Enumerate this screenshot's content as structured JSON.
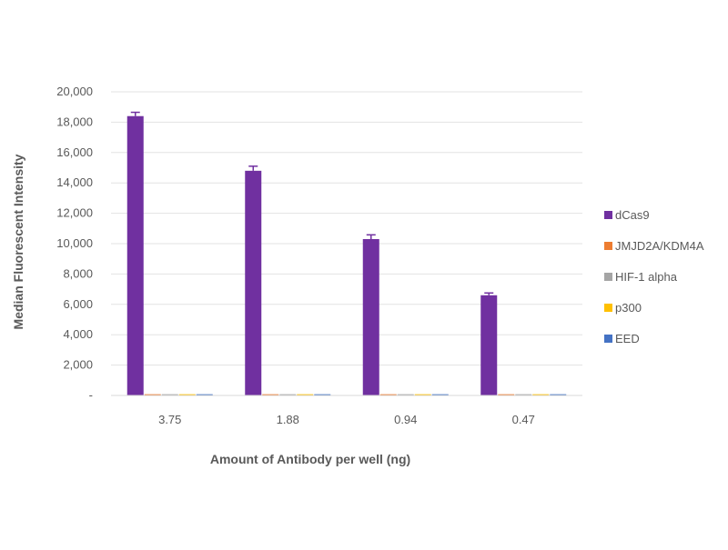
{
  "chart_data": {
    "type": "bar",
    "categories": [
      "3.75",
      "1.88",
      "0.94",
      "0.47"
    ],
    "series": [
      {
        "name": "dCas9",
        "color": "#7030A0",
        "values": [
          18400,
          14800,
          10300,
          6600
        ],
        "errors": [
          250,
          300,
          280,
          150
        ]
      },
      {
        "name": "JMJD2A/KDM4A",
        "color": "#ED7D31",
        "values": [
          80,
          80,
          80,
          80
        ]
      },
      {
        "name": "HIF-1 alpha",
        "color": "#A5A5A5",
        "values": [
          80,
          80,
          80,
          80
        ]
      },
      {
        "name": "p300",
        "color": "#FFC000",
        "values": [
          80,
          80,
          80,
          80
        ]
      },
      {
        "name": "EED",
        "color": "#4472C4",
        "values": [
          80,
          80,
          80,
          80
        ]
      }
    ],
    "ylim": [
      0,
      20000
    ],
    "yticks": [
      0,
      2000,
      4000,
      6000,
      8000,
      10000,
      12000,
      14000,
      16000,
      18000,
      20000
    ],
    "ytick_labels": [
      "-",
      "2,000",
      "4,000",
      "6,000",
      "8,000",
      "10,000",
      "12,000",
      "14,000",
      "16,000",
      "18,000",
      "20,000"
    ],
    "xlabel": "Amount of Antibody per well (ng)",
    "ylabel": "Median Fluorescent Intensity",
    "grid": true,
    "legend_position": "right"
  }
}
